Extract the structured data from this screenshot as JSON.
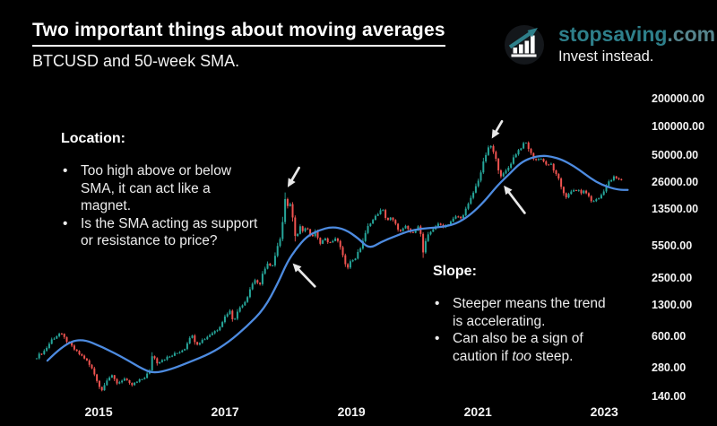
{
  "header": {
    "title": "Two important things about moving averages",
    "subtitle": "BTCUSD and 50-week SMA."
  },
  "brand": {
    "name": "stopsaving",
    "tld": ".com",
    "tagline": "Invest instead.",
    "accent_color": "#2e7f8a"
  },
  "annotations": {
    "bullet_char": "•",
    "location": {
      "title": "Location:",
      "bullet1": "Too high above or below\nSMA, it can act like a\nmagnet.",
      "bullet2": "Is the SMA acting as support\nor resistance to price?"
    },
    "slope": {
      "title": "Slope:",
      "bullet1": "Steeper means the trend\nis accelerating.",
      "bullet2_prefix": "Can also be a sign of\ncaution if ",
      "bullet2_italic": "too",
      "bullet2_suffix": " steep."
    }
  },
  "chart_data": {
    "type": "candlestick",
    "symbol": "BTCUSD",
    "overlay": "50-week SMA",
    "timeframe": "weekly",
    "grid": false,
    "colors": {
      "background": "#000000",
      "up": "#26a69a",
      "down": "#ef5350",
      "sma": "#4d8be0",
      "arrow": "#e8e8e8",
      "tick_text": "#f4f4f4"
    },
    "x_axis": {
      "scale": "time-years",
      "range": [
        2013.95,
        2023.45
      ],
      "ticks": [
        {
          "label": "2015",
          "value": 2015
        },
        {
          "label": "2017",
          "value": 2017
        },
        {
          "label": "2019",
          "value": 2019
        },
        {
          "label": "2021",
          "value": 2021
        },
        {
          "label": "2023",
          "value": 2023
        }
      ]
    },
    "y_axis": {
      "scale": "log",
      "range": [
        140,
        200000
      ],
      "side": "right",
      "ticks": [
        {
          "label": "200000.00",
          "value": 200000
        },
        {
          "label": "100000.00",
          "value": 100000
        },
        {
          "label": "50000.00",
          "value": 50000
        },
        {
          "label": "26000.00",
          "value": 26000
        },
        {
          "label": "13500.00",
          "value": 13500
        },
        {
          "label": "5500.00",
          "value": 5500
        },
        {
          "label": "2500.00",
          "value": 2500
        },
        {
          "label": "1300.00",
          "value": 1300
        },
        {
          "label": "600.00",
          "value": 600
        },
        {
          "label": "280.00",
          "value": 280
        },
        {
          "label": "140.00",
          "value": 140
        }
      ]
    },
    "price_anchors": [
      [
        2013.98,
        350
      ],
      [
        2014.15,
        430
      ],
      [
        2014.26,
        560
      ],
      [
        2014.39,
        655
      ],
      [
        2014.5,
        540
      ],
      [
        2014.65,
        415
      ],
      [
        2014.79,
        350
      ],
      [
        2014.9,
        270
      ],
      [
        2015.0,
        190
      ],
      [
        2015.04,
        155
      ],
      [
        2015.11,
        205
      ],
      [
        2015.2,
        232
      ],
      [
        2015.3,
        191
      ],
      [
        2015.4,
        218
      ],
      [
        2015.51,
        182
      ],
      [
        2015.61,
        199
      ],
      [
        2015.71,
        218
      ],
      [
        2015.81,
        260
      ],
      [
        2015.85,
        395
      ],
      [
        2015.92,
        320
      ],
      [
        2016.02,
        348
      ],
      [
        2016.13,
        370
      ],
      [
        2016.25,
        406
      ],
      [
        2016.36,
        451
      ],
      [
        2016.46,
        640
      ],
      [
        2016.55,
        505
      ],
      [
        2016.66,
        562
      ],
      [
        2016.77,
        640
      ],
      [
        2016.89,
        728
      ],
      [
        2017.0,
        985
      ],
      [
        2017.07,
        1150
      ],
      [
        2017.13,
        885
      ],
      [
        2017.24,
        1250
      ],
      [
        2017.33,
        1460
      ],
      [
        2017.41,
        2060
      ],
      [
        2017.48,
        2450
      ],
      [
        2017.55,
        2060
      ],
      [
        2017.61,
        3060
      ],
      [
        2017.68,
        3640
      ],
      [
        2017.74,
        3130
      ],
      [
        2017.81,
        4740
      ],
      [
        2017.88,
        7030
      ],
      [
        2017.92,
        11400
      ],
      [
        2017.96,
        19800
      ],
      [
        2018.0,
        13400
      ],
      [
        2018.04,
        15340
      ],
      [
        2018.08,
        10150
      ],
      [
        2018.12,
        6300
      ],
      [
        2018.18,
        8800
      ],
      [
        2018.23,
        7950
      ],
      [
        2018.29,
        8690
      ],
      [
        2018.36,
        6700
      ],
      [
        2018.43,
        7900
      ],
      [
        2018.51,
        5900
      ],
      [
        2018.58,
        6700
      ],
      [
        2018.65,
        5700
      ],
      [
        2018.72,
        6400
      ],
      [
        2018.79,
        6300
      ],
      [
        2018.86,
        4300
      ],
      [
        2018.93,
        3250
      ],
      [
        2018.99,
        3800
      ],
      [
        2019.06,
        4100
      ],
      [
        2019.13,
        5000
      ],
      [
        2019.21,
        7050
      ],
      [
        2019.28,
        9550
      ],
      [
        2019.35,
        10500
      ],
      [
        2019.42,
        12250
      ],
      [
        2019.49,
        13350
      ],
      [
        2019.56,
        10250
      ],
      [
        2019.63,
        10900
      ],
      [
        2019.72,
        8700
      ],
      [
        2019.79,
        7600
      ],
      [
        2019.84,
        8900
      ],
      [
        2019.91,
        8100
      ],
      [
        2019.97,
        7250
      ],
      [
        2020.02,
        8450
      ],
      [
        2020.08,
        9650
      ],
      [
        2020.12,
        4300
      ],
      [
        2020.19,
        6700
      ],
      [
        2020.25,
        7700
      ],
      [
        2020.32,
        8900
      ],
      [
        2020.39,
        9300
      ],
      [
        2020.46,
        8900
      ],
      [
        2020.53,
        9500
      ],
      [
        2020.6,
        10400
      ],
      [
        2020.67,
        11400
      ],
      [
        2020.73,
        10700
      ],
      [
        2020.78,
        12400
      ],
      [
        2020.85,
        15100
      ],
      [
        2020.92,
        19600
      ],
      [
        2020.99,
        25500
      ],
      [
        2021.05,
        33800
      ],
      [
        2021.11,
        48000
      ],
      [
        2021.16,
        58300
      ],
      [
        2021.21,
        63500
      ],
      [
        2021.26,
        50300
      ],
      [
        2021.3,
        42200
      ],
      [
        2021.34,
        32600
      ],
      [
        2021.38,
        29900
      ],
      [
        2021.44,
        33800
      ],
      [
        2021.5,
        38600
      ],
      [
        2021.55,
        45900
      ],
      [
        2021.61,
        53500
      ],
      [
        2021.67,
        59800
      ],
      [
        2021.72,
        65300
      ],
      [
        2021.77,
        68300
      ],
      [
        2021.82,
        54700
      ],
      [
        2021.88,
        47000
      ],
      [
        2021.94,
        44000
      ],
      [
        2021.99,
        48100
      ],
      [
        2022.05,
        42200
      ],
      [
        2022.11,
        38600
      ],
      [
        2022.16,
        40400
      ],
      [
        2022.22,
        32600
      ],
      [
        2022.28,
        27400
      ],
      [
        2022.33,
        22100
      ],
      [
        2022.39,
        18200
      ],
      [
        2022.45,
        19400
      ],
      [
        2022.5,
        21200
      ],
      [
        2022.56,
        21600
      ],
      [
        2022.62,
        20300
      ],
      [
        2022.67,
        20700
      ],
      [
        2022.73,
        19900
      ],
      [
        2022.79,
        16400
      ],
      [
        2022.84,
        16700
      ],
      [
        2022.9,
        17100
      ],
      [
        2022.96,
        19400
      ],
      [
        2023.01,
        22600
      ],
      [
        2023.07,
        25900
      ],
      [
        2023.13,
        28300
      ],
      [
        2023.17,
        30200
      ],
      [
        2023.21,
        27100
      ],
      [
        2023.26,
        28300
      ],
      [
        2023.3,
        26500
      ]
    ],
    "sma_anchors": [
      [
        2014.19,
        335
      ],
      [
        2014.43,
        486
      ],
      [
        2014.72,
        578
      ],
      [
        2015.07,
        465
      ],
      [
        2015.43,
        348
      ],
      [
        2015.71,
        269
      ],
      [
        2015.88,
        247
      ],
      [
        2016.13,
        269
      ],
      [
        2016.42,
        320
      ],
      [
        2016.77,
        399
      ],
      [
        2017.06,
        528
      ],
      [
        2017.34,
        767
      ],
      [
        2017.62,
        1187
      ],
      [
        2017.84,
        2240
      ],
      [
        2017.98,
        3670
      ],
      [
        2018.12,
        5090
      ],
      [
        2018.29,
        6920
      ],
      [
        2018.48,
        8050
      ],
      [
        2018.69,
        8790
      ],
      [
        2018.9,
        8240
      ],
      [
        2019.11,
        6620
      ],
      [
        2019.28,
        5110
      ],
      [
        2019.47,
        6070
      ],
      [
        2019.68,
        6930
      ],
      [
        2019.89,
        7870
      ],
      [
        2020.11,
        8400
      ],
      [
        2020.32,
        8580
      ],
      [
        2020.53,
        8960
      ],
      [
        2020.7,
        9770
      ],
      [
        2020.89,
        11900
      ],
      [
        2021.1,
        16200
      ],
      [
        2021.31,
        24100
      ],
      [
        2021.5,
        31900
      ],
      [
        2021.67,
        41600
      ],
      [
        2021.84,
        47300
      ],
      [
        2022.02,
        49900
      ],
      [
        2022.16,
        48800
      ],
      [
        2022.33,
        45200
      ],
      [
        2022.52,
        38600
      ],
      [
        2022.69,
        31900
      ],
      [
        2022.87,
        26200
      ],
      [
        2023.06,
        23100
      ],
      [
        2023.23,
        21600
      ],
      [
        2023.37,
        21600
      ]
    ],
    "arrows": [
      {
        "name": "arrow-2017-peak",
        "tail": [
          2018.17,
          37000
        ],
        "tip": [
          2017.99,
          23000
        ]
      },
      {
        "name": "arrow-2018-sma",
        "tail": [
          2018.42,
          2050
        ],
        "tip": [
          2018.07,
          3600
        ]
      },
      {
        "name": "arrow-2021-peak",
        "tail": [
          2021.38,
          115000
        ],
        "tip": [
          2021.22,
          75500
        ]
      },
      {
        "name": "arrow-2021-sma",
        "tail": [
          2021.74,
          12300
        ],
        "tip": [
          2021.41,
          24000
        ]
      }
    ]
  }
}
